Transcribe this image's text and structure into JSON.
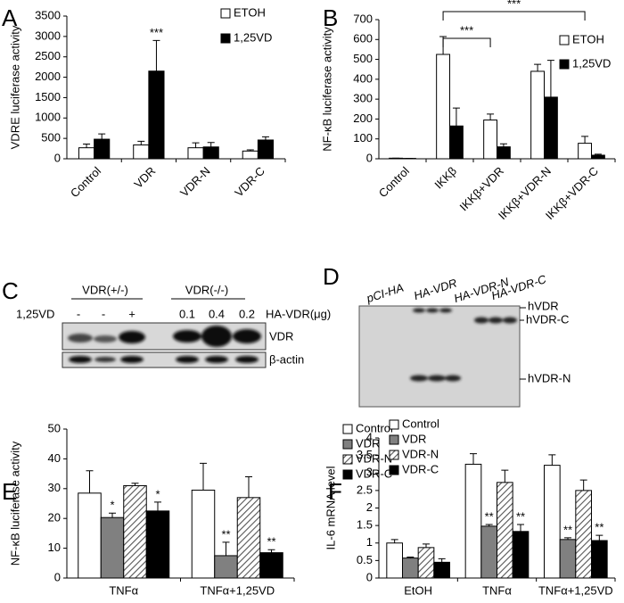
{
  "chart_data": [
    {
      "type": "bar",
      "panel": "A",
      "ylabel": "VDRE luciferase activity",
      "categories": [
        "Control",
        "VDR",
        "VDR-N",
        "VDR-C"
      ],
      "series": [
        {
          "name": "ETOH",
          "color": "#ffffff",
          "values": [
            270,
            340,
            270,
            190
          ],
          "errors": [
            90,
            90,
            120,
            30
          ]
        },
        {
          "name": "1,25VD",
          "color": "#000000",
          "values": [
            480,
            2150,
            290,
            460
          ],
          "errors": [
            130,
            750,
            110,
            80
          ]
        }
      ],
      "ylim": [
        0,
        3500
      ],
      "yticks": [
        0,
        500,
        1000,
        1500,
        2000,
        2500,
        3000,
        3500
      ],
      "annotations": [
        {
          "text": "***",
          "category": 1,
          "series": 1
        }
      ]
    },
    {
      "type": "bar",
      "panel": "B",
      "ylabel": "NF-κB luciferase activity",
      "categories": [
        "Control",
        "IKKβ",
        "IKKβ+VDR",
        "IKKβ+VDR-N",
        "IKKβ+VDR-C"
      ],
      "series": [
        {
          "name": "ETOH",
          "color": "#ffffff",
          "values": [
            3,
            525,
            195,
            440,
            78
          ],
          "errors": [
            0,
            90,
            30,
            35,
            35
          ]
        },
        {
          "name": "1,25VD",
          "color": "#000000",
          "values": [
            2,
            165,
            60,
            310,
            18
          ],
          "errors": [
            0,
            90,
            15,
            185,
            5
          ]
        }
      ],
      "ylim": [
        0,
        700
      ],
      "yticks": [
        0,
        100,
        200,
        300,
        400,
        500,
        600,
        700
      ],
      "brackets": [
        {
          "text": "***",
          "from": 1,
          "to": 2
        },
        {
          "text": "***",
          "from": 1,
          "to": 4
        }
      ]
    },
    {
      "type": "bar",
      "panel": "E",
      "ylabel": "NF-κB luciferase activity",
      "categories": [
        "TNFα",
        "TNFα+1,25VD"
      ],
      "series": [
        {
          "name": "Control",
          "color": "#ffffff",
          "values": [
            28.5,
            29.5
          ],
          "errors": [
            7.5,
            9
          ]
        },
        {
          "name": "VDR",
          "color": "#808080",
          "values": [
            20.3,
            7.5
          ],
          "errors": [
            1.5,
            4.5
          ]
        },
        {
          "name": "VDR-N",
          "color": "#ffffff",
          "pattern": "hatch",
          "values": [
            31,
            27
          ],
          "errors": [
            0.8,
            7
          ]
        },
        {
          "name": "VDR-C",
          "color": "#000000",
          "values": [
            22.5,
            8.5
          ],
          "errors": [
            3,
            1
          ]
        }
      ],
      "ylim": [
        0,
        50
      ],
      "yticks": [
        0,
        10,
        20,
        30,
        40,
        50
      ],
      "annotations": [
        {
          "text": "*",
          "category": 0,
          "series": 1
        },
        {
          "text": "*",
          "category": 0,
          "series": 3
        },
        {
          "text": "**",
          "category": 1,
          "series": 1
        },
        {
          "text": "**",
          "category": 1,
          "series": 3
        }
      ]
    },
    {
      "type": "bar",
      "panel": "F",
      "ylabel": "IL-6 mRNA level",
      "categories": [
        "EtOH",
        "TNFα",
        "TNFα+1,25VD"
      ],
      "series": [
        {
          "name": "Control",
          "color": "#ffffff",
          "values": [
            1.0,
            3.25,
            3.22
          ],
          "errors": [
            0.1,
            0.3,
            0.3
          ]
        },
        {
          "name": "VDR",
          "color": "#808080",
          "values": [
            0.57,
            1.48,
            1.1
          ],
          "errors": [
            0.03,
            0.05,
            0.05
          ]
        },
        {
          "name": "VDR-N",
          "color": "#ffffff",
          "pattern": "hatch",
          "values": [
            0.87,
            2.73,
            2.5
          ],
          "errors": [
            0.1,
            0.35,
            0.3
          ]
        },
        {
          "name": "VDR-C",
          "color": "#000000",
          "values": [
            0.45,
            1.33,
            1.07
          ],
          "errors": [
            0.1,
            0.2,
            0.15
          ]
        }
      ],
      "ylim": [
        0,
        4
      ],
      "yticks": [
        0,
        0.5,
        1,
        1.5,
        2,
        2.5,
        3,
        3.5,
        4
      ],
      "annotations": [
        {
          "text": "**",
          "category": 1,
          "series": 1
        },
        {
          "text": "**",
          "category": 1,
          "series": 3
        },
        {
          "text": "**",
          "category": 2,
          "series": 1
        },
        {
          "text": "**",
          "category": 2,
          "series": 3
        }
      ]
    }
  ],
  "blot_c": {
    "panel": "C",
    "groups": [
      "VDR(+/-)",
      "VDR(-/-)"
    ],
    "treatment_label": "1,25VD",
    "lanes": [
      "-",
      "-",
      "+",
      "0.1",
      "0.4",
      "0.2"
    ],
    "dose_label": "HA-VDR(μg)",
    "bands": [
      "VDR",
      "β-actin"
    ]
  },
  "blot_d": {
    "panel": "D",
    "lanes": [
      "pCI-HA",
      "HA-VDR",
      "HA-VDR-N",
      "HA-VDR-C"
    ],
    "bands": [
      "hVDR",
      "hVDR-C",
      "hVDR-N"
    ]
  }
}
